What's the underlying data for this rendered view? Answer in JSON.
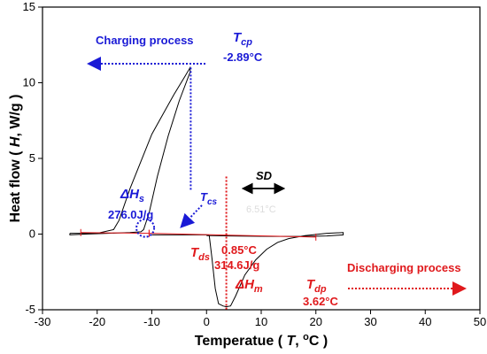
{
  "chart_data": {
    "type": "line",
    "xlabel_parts": [
      "Temperatue ( ",
      "T",
      ", ",
      "o",
      "C )"
    ],
    "ylabel_parts": [
      "Heat flow ( ",
      "H",
      ", W/g )"
    ],
    "xlim": [
      -30,
      50
    ],
    "ylim": [
      -5,
      15
    ],
    "x_ticks": [
      -30,
      -20,
      -10,
      0,
      10,
      20,
      30,
      40,
      50
    ],
    "y_ticks": [
      -5,
      0,
      5,
      10,
      15
    ],
    "grid": false,
    "series": [
      {
        "color": "#000000",
        "points": [
          [
            -25,
            0.05
          ],
          [
            -20,
            0.05
          ],
          [
            -17,
            0.3
          ],
          [
            -16,
            0.9
          ],
          [
            -14,
            3.0
          ],
          [
            -10,
            6.6
          ],
          [
            -6,
            9.2
          ],
          [
            -4,
            10.4
          ],
          [
            -3,
            11.0
          ],
          [
            -3,
            10.7
          ],
          [
            -5,
            8.8
          ],
          [
            -7,
            6.5
          ],
          [
            -9,
            3.8
          ],
          [
            -10.5,
            1.4
          ],
          [
            -11.5,
            0.3
          ],
          [
            -12,
            0.15
          ],
          [
            -14,
            0.1
          ],
          [
            -18,
            0.05
          ],
          [
            -22,
            0.0
          ],
          [
            -25,
            -0.05
          ],
          [
            -25,
            0.05
          ]
        ]
      },
      {
        "color": "#000000",
        "points": [
          [
            -10,
            -0.05
          ],
          [
            0,
            -0.05
          ],
          [
            0.5,
            -0.1
          ],
          [
            1.0,
            -1.6
          ],
          [
            1.6,
            -3.6
          ],
          [
            2.2,
            -4.6
          ],
          [
            3.0,
            -4.75
          ],
          [
            3.6,
            -4.8
          ],
          [
            4.4,
            -4.75
          ],
          [
            5.3,
            -4.1
          ],
          [
            7.0,
            -2.7
          ],
          [
            9.0,
            -1.7
          ],
          [
            11,
            -1.0
          ],
          [
            13,
            -0.55
          ],
          [
            15,
            -0.3
          ],
          [
            18,
            -0.1
          ],
          [
            22,
            0.05
          ],
          [
            25,
            0.1
          ],
          [
            25,
            -0.05
          ],
          [
            22,
            -0.12
          ],
          [
            18,
            -0.15
          ],
          [
            12,
            -0.15
          ],
          [
            4,
            -0.12
          ],
          [
            1,
            -0.1
          ],
          [
            0,
            -0.1
          ]
        ]
      }
    ],
    "baselines": [
      {
        "color": "#e0191c",
        "from": [
          -23,
          0.1
        ],
        "to": [
          -10.5,
          0.05
        ]
      },
      {
        "color": "#e0191c",
        "from": [
          -10.5,
          0.05
        ],
        "to": [
          20,
          -0.2
        ]
      }
    ],
    "markers": [
      {
        "type": "vline",
        "color": "#1a1ad6",
        "x": -2.89,
        "y_from": 11.0,
        "y_to": 2.9
      },
      {
        "type": "vline",
        "color": "#e0191c",
        "x": 3.62,
        "y_from": 3.8,
        "y_to": -5.0
      },
      {
        "type": "circle",
        "color": "#1a1ad6",
        "x": -11.2,
        "y": 0.4
      }
    ],
    "annotations": {
      "charging": {
        "text": "Charging process",
        "color": "#1a1ad6"
      },
      "discharging": {
        "text": "Discharging process",
        "color": "#e0191c"
      },
      "tcp_symbol": {
        "main": "T",
        "sub": "cp"
      },
      "tcp_value": "-2.89°C",
      "dhs_symbol": {
        "main": "ΔH",
        "sub": "s"
      },
      "dhs_value": "276.0J/g",
      "tcs_symbol": {
        "main": "T",
        "sub": "cs"
      },
      "tds_symbol": {
        "main": "T",
        "sub": "ds"
      },
      "tds_value": "0.85°C",
      "dhm_value": "314.6J/g",
      "dhm_symbol": {
        "main": "ΔH",
        "sub": "m"
      },
      "tdp_symbol": {
        "main": "T",
        "sub": "dp"
      },
      "tdp_value": "3.62°C",
      "sd_label": "SD",
      "ghost_label": "6.51°C"
    }
  }
}
